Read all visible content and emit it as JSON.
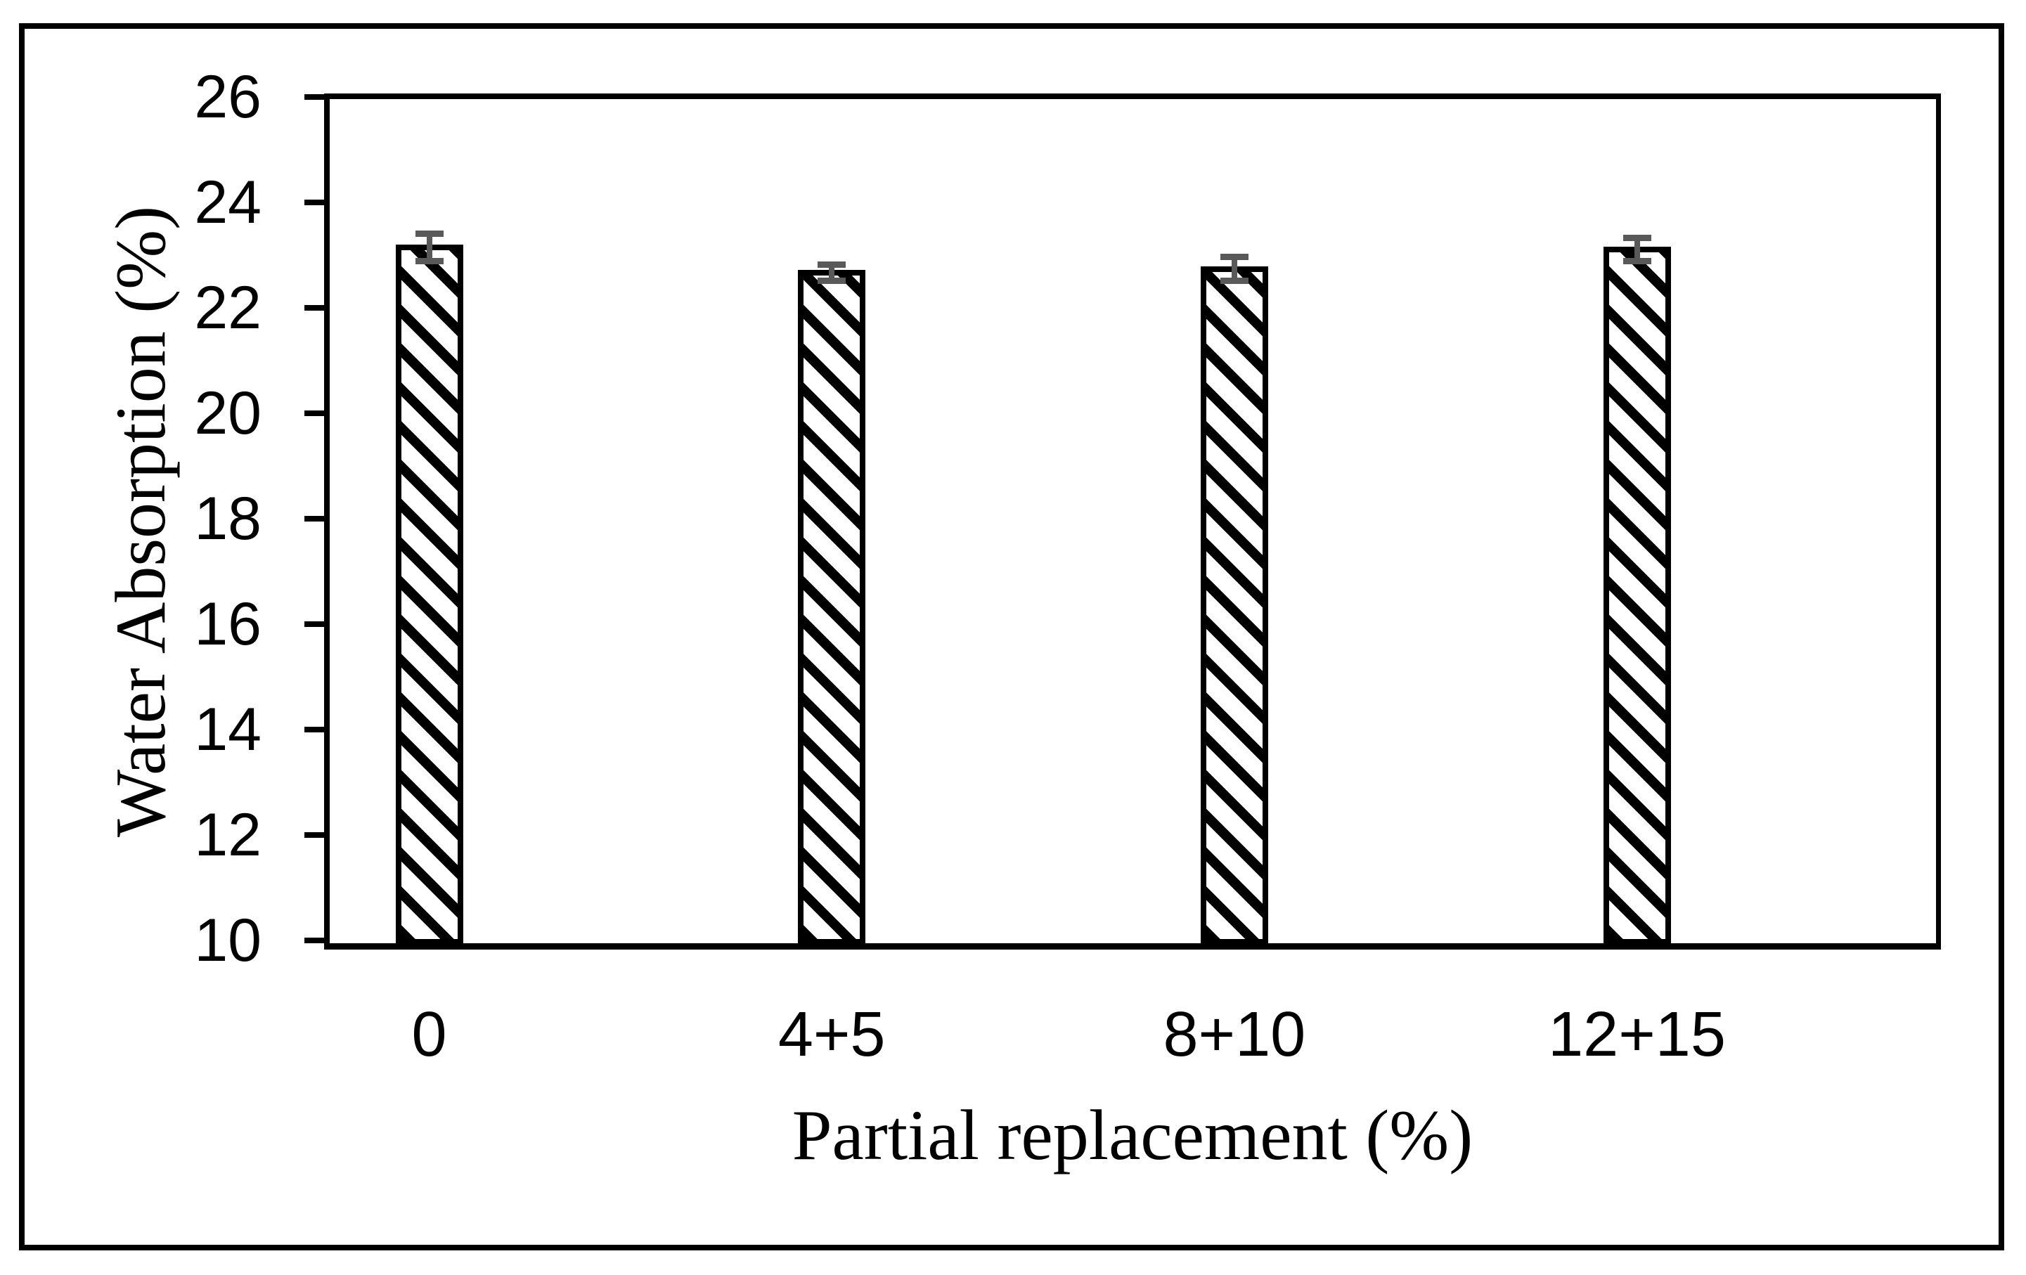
{
  "window": {
    "background": "#ffffff",
    "frame_border_color": "#000000"
  },
  "chart_data": {
    "type": "bar",
    "title": "",
    "categories": [
      "0",
      "4+5",
      "8+10",
      "12+15"
    ],
    "series": [
      {
        "name": "Water Absorption",
        "values": [
          23.15,
          22.67,
          22.74,
          23.11
        ],
        "error_bars": [
          0.26,
          0.15,
          0.23,
          0.22
        ]
      }
    ],
    "xlabel": "Partial replacement (%)",
    "ylabel": "Water Absorption (%)",
    "ylim": [
      10,
      26
    ],
    "yticks": [
      10,
      12,
      14,
      16,
      18,
      20,
      22,
      24,
      26
    ],
    "ytick_labels": [
      "10",
      "12",
      "14",
      "16",
      "18",
      "20",
      "22",
      "24",
      "26"
    ],
    "xlim_categories": 4,
    "grid": false,
    "legend_position": "none",
    "bar_fill_pattern": "diagonal-hatch",
    "hatch_direction": "backslash",
    "bar_outline_color": "#000000",
    "bar_fill_background": "#ffffff",
    "error_bar_color": "#595959",
    "axis_color": "#000000"
  }
}
